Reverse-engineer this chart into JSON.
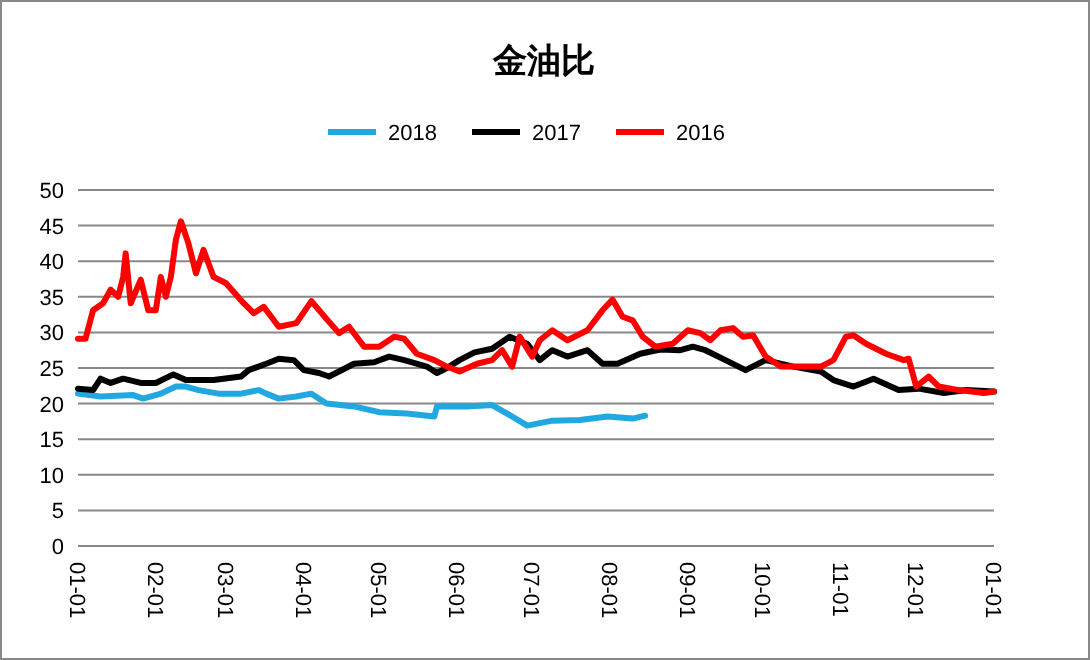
{
  "chart_data": {
    "type": "line",
    "title": "金油比",
    "legend": "top",
    "grid": "y",
    "marker": "none",
    "line_style": "solid",
    "xlim": [
      "2017-01-01",
      "2018-01-01"
    ],
    "xticks": [
      {
        "value": "2017-01-01",
        "label": "01-01"
      },
      {
        "value": "2017-02-01",
        "label": "02-01"
      },
      {
        "value": "2017-03-01",
        "label": "03-01"
      },
      {
        "value": "2017-04-01",
        "label": "04-01"
      },
      {
        "value": "2017-05-01",
        "label": "05-01"
      },
      {
        "value": "2017-06-01",
        "label": "06-01"
      },
      {
        "value": "2017-07-01",
        "label": "07-01"
      },
      {
        "value": "2017-08-01",
        "label": "08-01"
      },
      {
        "value": "2017-09-01",
        "label": "09-01"
      },
      {
        "value": "2017-10-01",
        "label": "10-01"
      },
      {
        "value": "2017-11-01",
        "label": "11-01"
      },
      {
        "value": "2017-12-01",
        "label": "12-01"
      },
      {
        "value": "2018-01-01",
        "label": "01-01"
      }
    ],
    "ylim": [
      0,
      50
    ],
    "yticks": [
      0,
      5,
      10,
      15,
      20,
      25,
      30,
      35,
      40,
      45,
      50
    ],
    "series": [
      {
        "name": "2018",
        "color": "#22a8e0",
        "x": [
          "2017-01-01",
          "2017-01-10",
          "2017-01-23",
          "2017-01-27",
          "2017-02-03",
          "2017-02-09",
          "2017-02-13",
          "2017-02-18",
          "2017-02-26",
          "2017-03-07",
          "2017-03-14",
          "2017-03-17",
          "2017-03-22",
          "2017-03-29",
          "2017-04-04",
          "2017-04-10",
          "2017-04-21",
          "2017-05-01",
          "2017-05-12",
          "2017-05-23",
          "2017-05-24",
          "2017-06-05",
          "2017-06-15",
          "2017-06-21",
          "2017-06-29",
          "2017-07-09",
          "2017-07-20",
          "2017-07-31",
          "2017-08-10",
          "2017-08-15"
        ],
        "values": [
          21.4,
          21,
          21.2,
          20.7,
          21.4,
          22.4,
          22.4,
          21.9,
          21.4,
          21.4,
          21.9,
          21.4,
          20.7,
          21,
          21.4,
          20,
          19.6,
          18.8,
          18.6,
          18.2,
          19.6,
          19.6,
          19.8,
          18.6,
          16.9,
          17.6,
          17.7,
          18.2,
          17.9,
          18.3
        ]
      },
      {
        "name": "2017",
        "color": "#000000",
        "x": [
          "2017-01-01",
          "2017-01-07",
          "2017-01-10",
          "2017-01-14",
          "2017-01-19",
          "2017-01-26",
          "2017-02-01",
          "2017-02-08",
          "2017-02-13",
          "2017-02-24",
          "2017-03-07",
          "2017-03-10",
          "2017-03-17",
          "2017-03-22",
          "2017-03-28",
          "2017-04-01",
          "2017-04-07",
          "2017-04-11",
          "2017-04-15",
          "2017-04-21",
          "2017-04-29",
          "2017-05-05",
          "2017-05-11",
          "2017-05-20",
          "2017-05-24",
          "2017-05-28",
          "2017-06-02",
          "2017-06-08",
          "2017-06-15",
          "2017-06-22",
          "2017-06-29",
          "2017-07-04",
          "2017-07-09",
          "2017-07-15",
          "2017-07-23",
          "2017-07-29",
          "2017-08-04",
          "2017-08-13",
          "2017-08-21",
          "2017-08-29",
          "2017-09-03",
          "2017-09-08",
          "2017-09-16",
          "2017-09-24",
          "2017-10-02",
          "2017-10-13",
          "2017-10-24",
          "2017-10-29",
          "2017-11-06",
          "2017-11-14",
          "2017-11-24",
          "2017-12-02",
          "2017-12-12",
          "2017-12-21",
          "2018-01-01"
        ],
        "values": [
          22.1,
          21.9,
          23.5,
          22.9,
          23.5,
          22.9,
          22.9,
          24.1,
          23.3,
          23.3,
          23.8,
          24.7,
          25.6,
          26.3,
          26.1,
          24.7,
          24.3,
          23.8,
          24.5,
          25.6,
          25.8,
          26.6,
          26.1,
          25.2,
          24.3,
          25,
          26.1,
          27.2,
          27.7,
          29.4,
          28.4,
          26.1,
          27.5,
          26.6,
          27.5,
          25.6,
          25.6,
          27,
          27.6,
          27.5,
          28,
          27.5,
          26.1,
          24.7,
          26.1,
          25.2,
          24.5,
          23.3,
          22.4,
          23.5,
          21.9,
          22.1,
          21.5,
          21.9,
          21.7
        ]
      },
      {
        "name": "2016",
        "color": "#ff0000",
        "x": [
          "2017-01-01",
          "2017-01-04",
          "2017-01-07",
          "2017-01-11",
          "2017-01-14",
          "2017-01-17",
          "2017-01-19",
          "2017-01-20",
          "2017-01-22",
          "2017-01-26",
          "2017-01-29",
          "2017-02-01",
          "2017-02-03",
          "2017-02-05",
          "2017-02-07",
          "2017-02-09",
          "2017-02-11",
          "2017-02-14",
          "2017-02-17",
          "2017-02-20",
          "2017-02-24",
          "2017-03-01",
          "2017-03-08",
          "2017-03-12",
          "2017-03-16",
          "2017-03-22",
          "2017-03-29",
          "2017-04-04",
          "2017-04-10",
          "2017-04-15",
          "2017-04-19",
          "2017-04-25",
          "2017-05-01",
          "2017-05-07",
          "2017-05-11",
          "2017-05-16",
          "2017-05-23",
          "2017-05-28",
          "2017-06-02",
          "2017-06-09",
          "2017-06-15",
          "2017-06-19",
          "2017-06-23",
          "2017-06-26",
          "2017-07-01",
          "2017-07-04",
          "2017-07-09",
          "2017-07-15",
          "2017-07-23",
          "2017-07-29",
          "2017-08-02",
          "2017-08-06",
          "2017-08-10",
          "2017-08-14",
          "2017-08-19",
          "2017-08-26",
          "2017-09-01",
          "2017-09-06",
          "2017-09-10",
          "2017-09-14",
          "2017-09-19",
          "2017-09-23",
          "2017-09-27",
          "2017-10-02",
          "2017-10-08",
          "2017-10-16",
          "2017-10-24",
          "2017-10-29",
          "2017-11-03",
          "2017-11-06",
          "2017-11-11",
          "2017-11-19",
          "2017-11-26",
          "2017-11-28",
          "2017-12-01",
          "2017-12-06",
          "2017-12-10",
          "2017-12-18",
          "2017-12-28",
          "2018-01-01"
        ],
        "values": [
          29.1,
          29.1,
          33.1,
          34.1,
          36,
          35,
          37.8,
          41.1,
          34.1,
          37.4,
          33.1,
          33.1,
          37.8,
          35,
          37.8,
          43,
          45.6,
          42.5,
          38.3,
          41.6,
          37.8,
          36.9,
          34.1,
          32.7,
          33.6,
          30.8,
          31.3,
          34.4,
          31.9,
          29.9,
          30.8,
          28,
          28,
          29.4,
          29.1,
          27,
          26.1,
          25.2,
          24.5,
          25.6,
          26.1,
          27.5,
          25.2,
          29.4,
          26.6,
          28.9,
          30.3,
          28.9,
          30.3,
          33.1,
          34.6,
          32.2,
          31.7,
          29.4,
          28,
          28.4,
          30.3,
          29.9,
          28.9,
          30.3,
          30.6,
          29.4,
          29.6,
          26.6,
          25.2,
          25.2,
          25.2,
          26.1,
          29.4,
          29.6,
          28.4,
          27,
          26.1,
          26.3,
          22.4,
          23.8,
          22.4,
          21.9,
          21.5,
          21.7
        ]
      }
    ]
  }
}
